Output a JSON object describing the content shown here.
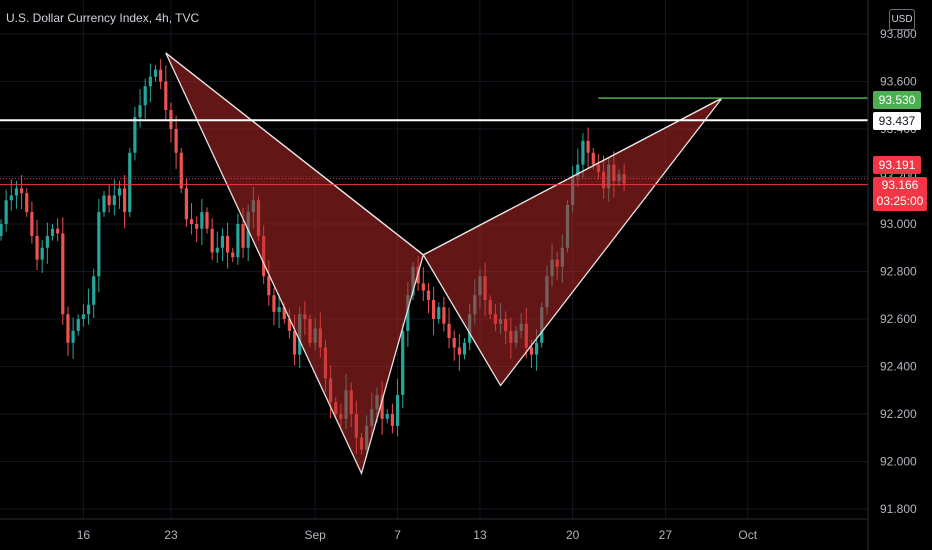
{
  "header": {
    "title": "U.S. Dollar Currency Index, 4h, TVC",
    "currency": "USD"
  },
  "chart_data": {
    "type": "candlestick",
    "symbol": "U.S. Dollar Currency Index",
    "timeframe": "4h",
    "source": "TVC",
    "y_axis": {
      "ylim": [
        91.72,
        93.85
      ],
      "ticks": [
        "93.800",
        "93.600",
        "93.400",
        "93.200",
        "93.000",
        "92.800",
        "92.600",
        "92.400",
        "92.200",
        "92.000",
        "91.800"
      ],
      "tick_values": [
        93.8,
        93.6,
        93.4,
        93.2,
        93.0,
        92.8,
        92.6,
        92.4,
        92.2,
        92.0,
        91.8
      ]
    },
    "x_axis": {
      "ticks": [
        "16",
        "23",
        "Sep",
        "7",
        "13",
        "20",
        "27",
        "Oct"
      ],
      "tick_bar_index": [
        16,
        33,
        61,
        77,
        93,
        111,
        129,
        145
      ]
    },
    "price_labels": {
      "target": "93.530",
      "level": "93.437",
      "high": "93.191",
      "last": "93.166",
      "countdown": "03:25:00"
    },
    "levels": {
      "target": 93.53,
      "horizontal": 93.437,
      "dotted": 93.191,
      "last": 93.166
    },
    "pattern_points": [
      {
        "bar": 32,
        "price": 93.72
      },
      {
        "bar": 70,
        "price": 91.95
      },
      {
        "bar": 82,
        "price": 92.87
      },
      {
        "bar": 97,
        "price": 92.32
      },
      {
        "bar": 140,
        "price": 93.53
      }
    ],
    "pattern_target_start_bar": 116,
    "closes": [
      93.0,
      93.1,
      93.12,
      93.15,
      93.13,
      93.05,
      92.95,
      92.85,
      92.9,
      92.95,
      92.98,
      92.96,
      92.62,
      92.5,
      92.55,
      92.6,
      92.62,
      92.66,
      92.78,
      93.05,
      93.12,
      93.08,
      93.12,
      93.15,
      93.05,
      93.3,
      93.45,
      93.5,
      93.58,
      93.62,
      93.65,
      93.6,
      93.48,
      93.4,
      93.3,
      93.15,
      93.02,
      93.0,
      92.98,
      93.05,
      92.98,
      92.88,
      92.9,
      92.95,
      92.88,
      92.86,
      93.0,
      92.9,
      93.05,
      93.1,
      92.95,
      92.78,
      92.7,
      92.63,
      92.65,
      92.6,
      92.55,
      92.45,
      92.62,
      92.6,
      92.5,
      92.56,
      92.48,
      92.35,
      92.25,
      92.2,
      92.18,
      92.3,
      92.2,
      92.1,
      92.05,
      92.15,
      92.22,
      92.28,
      92.18,
      92.2,
      92.15,
      92.28,
      92.55,
      92.7,
      92.82,
      92.75,
      92.72,
      92.68,
      92.6,
      92.65,
      92.58,
      92.52,
      92.48,
      92.45,
      92.5,
      92.62,
      92.7,
      92.78,
      92.68,
      92.62,
      92.58,
      92.6,
      92.55,
      92.5,
      92.55,
      92.58,
      92.48,
      92.45,
      92.5,
      92.65,
      92.78,
      92.85,
      92.82,
      92.9,
      93.08,
      93.2,
      93.25,
      93.35,
      93.3,
      93.25,
      93.22,
      93.15,
      93.25,
      93.18,
      93.21,
      93.17
    ]
  }
}
